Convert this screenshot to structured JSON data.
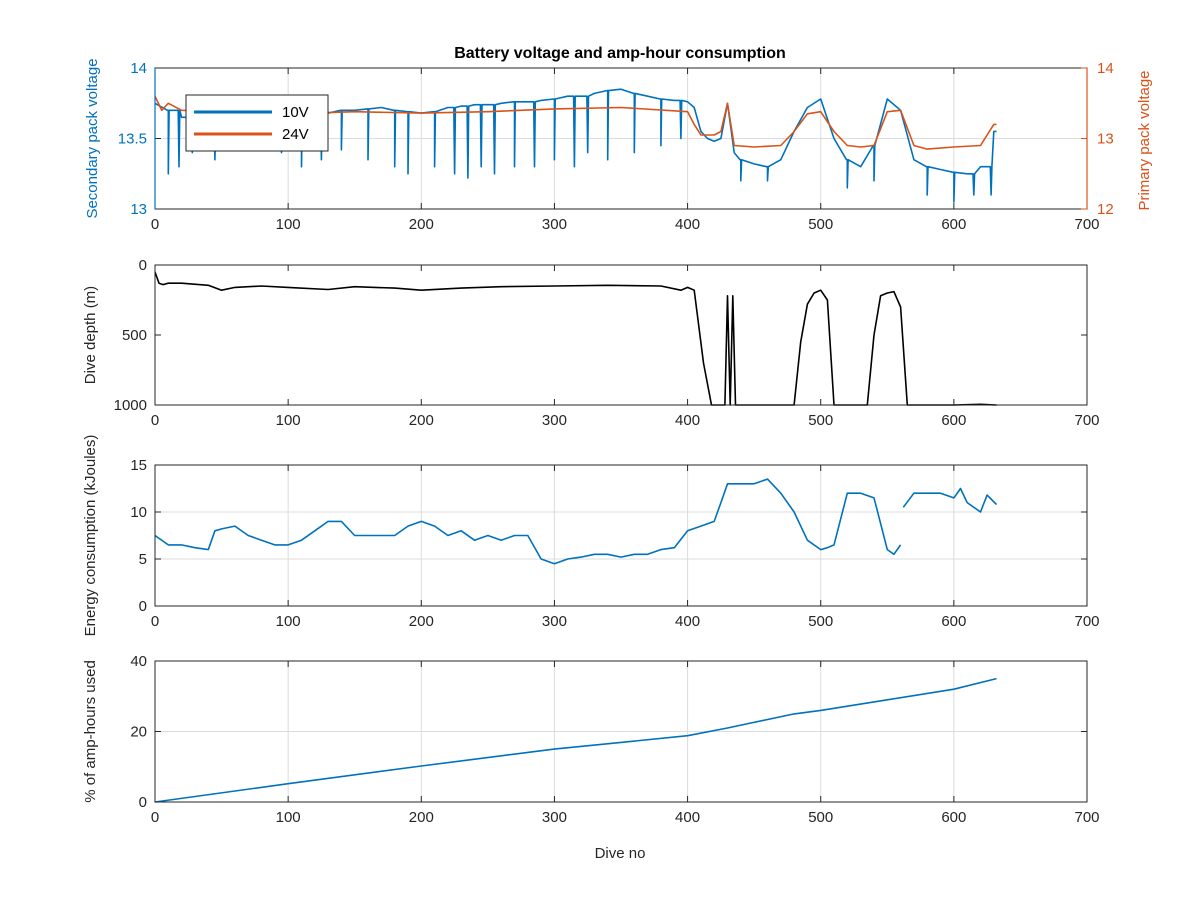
{
  "figure": {
    "title": "Battery voltage and amp-hour consumption",
    "xlabel": "Dive no"
  },
  "colors": {
    "blue": "#0072BD",
    "orange": "#D95319",
    "black": "#000000",
    "grid": "#dcdcdc",
    "axis": "#262626"
  },
  "chart_data": [
    {
      "type": "line",
      "title": "Battery voltage and amp-hour consumption",
      "xlabel": "",
      "ylabel": "Secondary pack voltage",
      "ylabel_right": "Primary pack voltage",
      "xlim": [
        0,
        700
      ],
      "ylim": [
        13,
        14
      ],
      "ylim_right": [
        12,
        14
      ],
      "xticks": [
        0,
        100,
        200,
        300,
        400,
        500,
        600,
        700
      ],
      "yticks": [
        13,
        13.5,
        14
      ],
      "yticks_right": [
        12,
        13,
        14
      ],
      "grid": true,
      "legend": "top-left",
      "series": [
        {
          "name": "10V",
          "axis": "left",
          "color": "#0072BD",
          "x": [
            0,
            10,
            20,
            30,
            40,
            50,
            60,
            70,
            80,
            90,
            100,
            110,
            120,
            130,
            140,
            150,
            160,
            170,
            180,
            190,
            200,
            210,
            220,
            230,
            240,
            250,
            260,
            270,
            280,
            290,
            300,
            310,
            320,
            330,
            340,
            350,
            360,
            370,
            380,
            390,
            400,
            405,
            410,
            415,
            420,
            425,
            430,
            435,
            440,
            450,
            460,
            470,
            480,
            490,
            500,
            510,
            520,
            530,
            540,
            550,
            560,
            570,
            580,
            590,
            600,
            610,
            620,
            630,
            632
          ],
          "y": [
            13.75,
            13.7,
            13.65,
            13.6,
            13.62,
            13.64,
            13.66,
            13.65,
            13.64,
            13.65,
            13.66,
            13.66,
            13.67,
            13.68,
            13.7,
            13.7,
            13.71,
            13.72,
            13.7,
            13.69,
            13.68,
            13.69,
            13.72,
            13.73,
            13.74,
            13.74,
            13.75,
            13.76,
            13.76,
            13.77,
            13.78,
            13.8,
            13.8,
            13.82,
            13.84,
            13.85,
            13.82,
            13.8,
            13.78,
            13.77,
            13.76,
            13.72,
            13.55,
            13.5,
            13.48,
            13.5,
            13.75,
            13.4,
            13.35,
            13.32,
            13.3,
            13.35,
            13.55,
            13.72,
            13.78,
            13.5,
            13.35,
            13.3,
            13.45,
            13.78,
            13.7,
            13.35,
            13.3,
            13.28,
            13.26,
            13.25,
            13.3,
            13.55,
            13.55
          ],
          "dips": [
            [
              10,
              13.25
            ],
            [
              18,
              13.3
            ],
            [
              28,
              13.4
            ],
            [
              45,
              13.35
            ],
            [
              55,
              13.45
            ],
            [
              72,
              13.42
            ],
            [
              95,
              13.4
            ],
            [
              110,
              13.3
            ],
            [
              125,
              13.35
            ],
            [
              140,
              13.42
            ],
            [
              160,
              13.35
            ],
            [
              180,
              13.3
            ],
            [
              190,
              13.25
            ],
            [
              210,
              13.3
            ],
            [
              225,
              13.25
            ],
            [
              235,
              13.22
            ],
            [
              245,
              13.3
            ],
            [
              255,
              13.25
            ],
            [
              270,
              13.3
            ],
            [
              285,
              13.3
            ],
            [
              300,
              13.35
            ],
            [
              315,
              13.3
            ],
            [
              325,
              13.4
            ],
            [
              340,
              13.35
            ],
            [
              360,
              13.4
            ],
            [
              380,
              13.45
            ],
            [
              395,
              13.5
            ],
            [
              440,
              13.2
            ],
            [
              460,
              13.2
            ],
            [
              520,
              13.15
            ],
            [
              540,
              13.2
            ],
            [
              580,
              13.1
            ],
            [
              600,
              13.05
            ],
            [
              615,
              13.1
            ],
            [
              628,
              13.1
            ]
          ]
        },
        {
          "name": "24V",
          "axis": "right",
          "color": "#D95319",
          "x": [
            0,
            5,
            10,
            20,
            50,
            100,
            150,
            200,
            250,
            300,
            350,
            400,
            405,
            410,
            420,
            425,
            430,
            435,
            450,
            470,
            480,
            490,
            500,
            510,
            520,
            530,
            540,
            550,
            560,
            570,
            580,
            600,
            620,
            630,
            632
          ],
          "y": [
            13.6,
            13.4,
            13.5,
            13.4,
            13.38,
            13.35,
            13.38,
            13.36,
            13.38,
            13.42,
            13.44,
            13.38,
            13.2,
            13.05,
            13.05,
            13.1,
            13.5,
            12.9,
            12.88,
            12.9,
            13.1,
            13.35,
            13.38,
            13.1,
            12.9,
            12.88,
            12.9,
            13.38,
            13.4,
            12.9,
            12.85,
            12.88,
            12.9,
            13.2,
            13.2
          ]
        }
      ]
    },
    {
      "type": "line",
      "ylabel": "Dive depth (m)",
      "xlim": [
        0,
        700
      ],
      "ylim": [
        0,
        1000
      ],
      "y_reversed": true,
      "xticks": [
        0,
        100,
        200,
        300,
        400,
        500,
        600,
        700
      ],
      "yticks": [
        0,
        500,
        1000
      ],
      "grid": false,
      "series": [
        {
          "color": "#000000",
          "x": [
            0,
            3,
            6,
            10,
            20,
            40,
            50,
            60,
            80,
            100,
            130,
            150,
            180,
            200,
            230,
            260,
            300,
            340,
            380,
            395,
            400,
            405,
            412,
            418,
            425,
            428,
            430,
            432,
            434,
            436,
            440,
            470,
            480,
            485,
            490,
            495,
            500,
            505,
            510,
            520,
            535,
            540,
            545,
            550,
            555,
            560,
            565,
            580,
            600,
            620,
            632
          ],
          "y": [
            50,
            130,
            140,
            130,
            130,
            145,
            180,
            160,
            150,
            160,
            175,
            155,
            165,
            180,
            165,
            155,
            150,
            145,
            150,
            180,
            160,
            180,
            700,
            1000,
            1000,
            1000,
            220,
            1000,
            220,
            1000,
            1000,
            1000,
            1000,
            550,
            280,
            200,
            180,
            250,
            1000,
            1000,
            1000,
            500,
            220,
            200,
            190,
            300,
            1000,
            1000,
            1000,
            995,
            1000
          ]
        }
      ]
    },
    {
      "type": "line",
      "ylabel": "Energy consumption (kJoules)",
      "xlim": [
        0,
        700
      ],
      "ylim": [
        0,
        15
      ],
      "xticks": [
        0,
        100,
        200,
        300,
        400,
        500,
        600,
        700
      ],
      "yticks": [
        0,
        5,
        10,
        15
      ],
      "grid": true,
      "series": [
        {
          "color": "#0072BD",
          "x": [
            0,
            10,
            20,
            30,
            40,
            45,
            50,
            60,
            70,
            80,
            90,
            100,
            110,
            120,
            130,
            140,
            150,
            160,
            170,
            180,
            190,
            200,
            210,
            220,
            230,
            240,
            250,
            260,
            270,
            280,
            290,
            300,
            310,
            320,
            330,
            340,
            350,
            360,
            370,
            380,
            390,
            400,
            410,
            420,
            425,
            430,
            440,
            450,
            460,
            470,
            480,
            490,
            500,
            505,
            510,
            520,
            530,
            540,
            550,
            555,
            560
          ],
          "y": [
            7.5,
            6.5,
            6.5,
            6.2,
            6,
            8,
            8.2,
            8.5,
            7.5,
            7,
            6.5,
            6.5,
            7,
            8,
            9,
            9,
            7.5,
            7.5,
            7.5,
            7.5,
            8.5,
            9,
            8.5,
            7.5,
            8,
            7,
            7.5,
            7,
            7.5,
            7.5,
            5,
            4.5,
            5,
            5.2,
            5.5,
            5.5,
            5.2,
            5.5,
            5.5,
            6,
            6.2,
            8,
            8.5,
            9,
            11,
            13,
            13,
            13,
            13.5,
            12,
            10,
            7,
            6,
            6.2,
            6.5,
            12,
            12,
            11.5,
            6,
            5.5,
            6.5
          ]
        },
        {
          "color": "#0072BD",
          "x": [
            562,
            570,
            580,
            590,
            600,
            605,
            610,
            620,
            625,
            632
          ],
          "y": [
            10.5,
            12,
            12,
            12,
            11.5,
            12.5,
            11,
            10,
            11.8,
            10.8
          ]
        }
      ]
    },
    {
      "type": "line",
      "ylabel": "% of amp-hours used",
      "xlabel": "Dive no",
      "xlim": [
        0,
        700
      ],
      "ylim": [
        0,
        40
      ],
      "xticks": [
        0,
        100,
        200,
        300,
        400,
        500,
        600,
        700
      ],
      "yticks": [
        0,
        20,
        40
      ],
      "grid": true,
      "series": [
        {
          "color": "#0072BD",
          "x": [
            0,
            100,
            200,
            300,
            400,
            430,
            480,
            500,
            550,
            600,
            632
          ],
          "y": [
            0,
            5.2,
            10.2,
            15,
            18.8,
            21,
            25,
            26,
            29,
            32,
            35
          ]
        }
      ]
    }
  ]
}
